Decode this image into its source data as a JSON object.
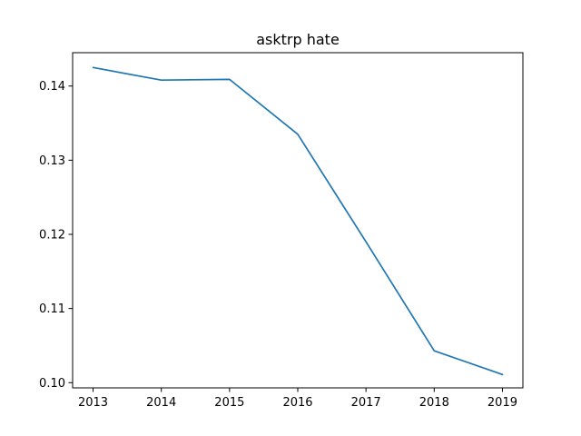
{
  "chart_data": {
    "type": "line",
    "title": "asktrp hate",
    "xlabel": "",
    "ylabel": "",
    "x": [
      2013,
      2014,
      2015,
      2016,
      2017,
      2018,
      2019
    ],
    "series": [
      {
        "values": [
          0.1425,
          0.1408,
          0.1409,
          0.1335,
          0.119,
          0.1043,
          0.1011
        ]
      }
    ],
    "xlim": [
      2012.7,
      2019.3
    ],
    "ylim": [
      0.0993,
      0.1445
    ],
    "xticks": [
      2013,
      2014,
      2015,
      2016,
      2017,
      2018,
      2019
    ],
    "yticks": [
      0.1,
      0.11,
      0.12,
      0.13,
      0.14
    ],
    "ytick_labels": [
      "0.10",
      "0.11",
      "0.12",
      "0.13",
      "0.14"
    ],
    "grid": false,
    "line_color": "#1f77b4"
  }
}
